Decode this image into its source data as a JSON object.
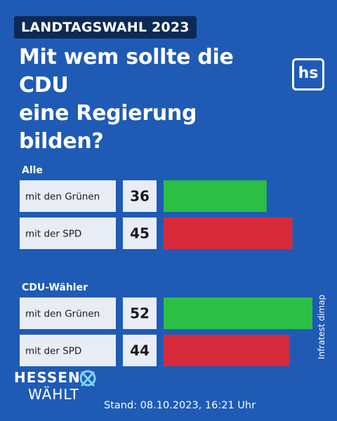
{
  "header": {
    "tag": "LANDTAGSWAHL 2023",
    "title_line1": "Mit wem sollte die CDU",
    "title_line2": "eine Regierung bilden?",
    "logo_text": "hs"
  },
  "chart_data": {
    "type": "bar",
    "title": "Mit wem sollte die CDU eine Regierung bilden?",
    "groups": [
      {
        "name": "Alle",
        "items": [
          {
            "label": "mit den Grünen",
            "value": 36,
            "color": "#2bbf45"
          },
          {
            "label": "mit der SPD",
            "value": 45,
            "color": "#d72a3b"
          }
        ]
      },
      {
        "name": "CDU-Wähler",
        "items": [
          {
            "label": "mit den Grünen",
            "value": 52,
            "color": "#2bbf45"
          },
          {
            "label": "mit der SPD",
            "value": 44,
            "color": "#d72a3b"
          }
        ]
      }
    ],
    "xlim": [
      0,
      52
    ]
  },
  "source": "Infratest dimap",
  "footer": {
    "brand_line1": "HESSEN",
    "brand_line2": "WÄHLT",
    "stand": "Stand: 08.10.2023, 16:21 Uhr"
  },
  "colors": {
    "background": "#1f5bb5",
    "label_box": "#e8edf5",
    "tag_background": "#0d2a56",
    "brand_mark": "#7fd3f0"
  }
}
